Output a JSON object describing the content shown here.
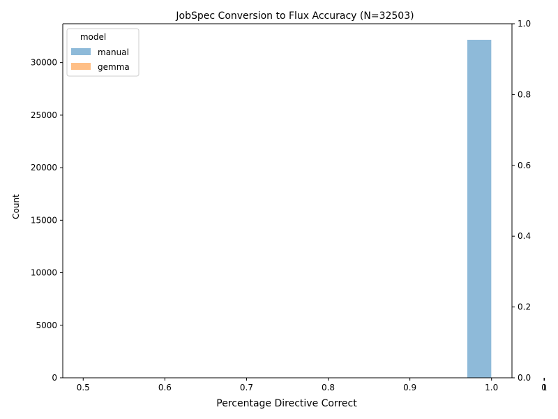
{
  "chart_data": {
    "type": "bar",
    "title": "JobSpec Conversion to Flux Accuracy (N=32503)",
    "xlabel": "Percentage Directive Correct",
    "ylabel": "Count",
    "xlim": [
      0.475,
      1.025
    ],
    "ylim": [
      0,
      33700
    ],
    "xticks": [
      "0.5",
      "0.6",
      "0.7",
      "0.8",
      "0.9",
      "1.0"
    ],
    "xtick_values": [
      0.5,
      0.6,
      0.7,
      0.8,
      0.9,
      1.0
    ],
    "yticks": [
      "0",
      "5000",
      "10000",
      "15000",
      "20000",
      "25000",
      "30000"
    ],
    "ytick_values": [
      0,
      5000,
      10000,
      15000,
      20000,
      25000,
      30000
    ],
    "secondary_y": {
      "ticks": [
        "0.0",
        "0.2",
        "0.4",
        "0.6",
        "0.8",
        "1.0"
      ],
      "tick_values": [
        0.0,
        0.2,
        0.4,
        0.6,
        0.8,
        1.0
      ],
      "lim": [
        0,
        1
      ]
    },
    "secondary_x": {
      "ticks": [
        "0",
        "1"
      ]
    },
    "legend": {
      "title": "model",
      "placement": "top-left",
      "entries": [
        {
          "name": "manual",
          "color": "#8ebad9"
        },
        {
          "name": "gemma",
          "color": "#ffbf86"
        }
      ]
    },
    "series": [
      {
        "name": "manual",
        "color": "#8ebad9",
        "bins": [
          {
            "x0": 0.815,
            "x1": 0.845,
            "count": 60
          },
          {
            "x0": 0.97,
            "x1": 1.0,
            "count": 32200
          }
        ]
      },
      {
        "name": "gemma",
        "color": "#ffbf86",
        "bins": []
      }
    ]
  }
}
